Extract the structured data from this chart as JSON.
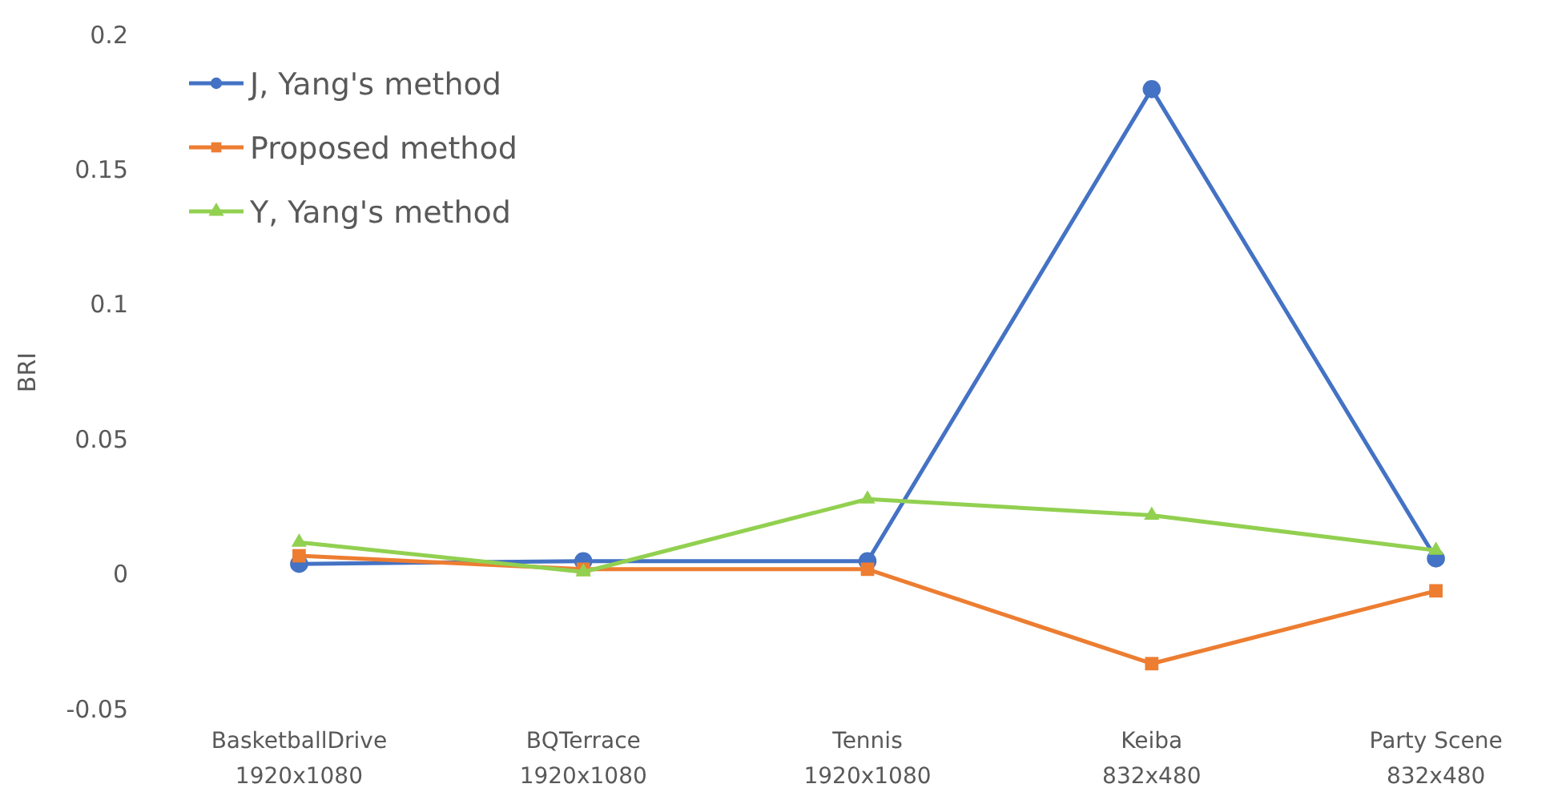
{
  "chart_data": {
    "type": "line",
    "ylabel": "BRI",
    "categories": [
      "BasketballDrive\n1920x1080",
      "BQTerrace\n1920x1080",
      "Tennis\n1920x1080",
      "Keiba\n832x480",
      "Party Scene\n832x480"
    ],
    "series": [
      {
        "name": "J, Yang's method",
        "color": "#4472c4",
        "marker": "circle",
        "values": [
          0.004,
          0.005,
          0.005,
          0.18,
          0.006
        ]
      },
      {
        "name": "Proposed method",
        "color": "#ed7d31",
        "marker": "square",
        "values": [
          0.007,
          0.002,
          0.002,
          -0.033,
          -0.006
        ]
      },
      {
        "name": "Y, Yang's method",
        "color": "#92d050",
        "marker": "triangle",
        "values": [
          0.012,
          0.001,
          0.028,
          0.022,
          0.009
        ]
      }
    ],
    "ylim": [
      -0.05,
      0.2
    ],
    "yticks": [
      -0.05,
      0,
      0.05,
      0.1,
      0.15,
      0.2
    ],
    "grid": false,
    "legend": "top left",
    "line_style": "solid"
  }
}
